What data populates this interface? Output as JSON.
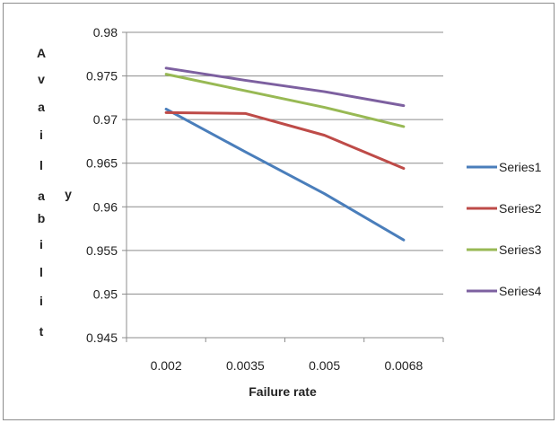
{
  "chart_data": {
    "type": "line",
    "title": "",
    "xlabel": "Failure rate",
    "ylabel_letters": [
      "A",
      "v",
      "a",
      "i",
      "l",
      "a",
      "b",
      "i",
      "l",
      "i",
      "t",
      "y"
    ],
    "categories": [
      "0.002",
      "0.0035",
      "0.005",
      "0.0068"
    ],
    "ylim": [
      0.945,
      0.98
    ],
    "yticks": [
      "0.945",
      "0.95",
      "0.955",
      "0.96",
      "0.965",
      "0.97",
      "0.975",
      "0.98"
    ],
    "grid": "horizontal",
    "legend": "right",
    "series": [
      {
        "name": "Series1",
        "color": "#4a7ebb",
        "values": [
          0.9712,
          0.9663,
          0.9615,
          0.9562
        ]
      },
      {
        "name": "Series2",
        "color": "#be4b48",
        "values": [
          0.9708,
          0.9707,
          0.9682,
          0.9644
        ]
      },
      {
        "name": "Series3",
        "color": "#98b954",
        "values": [
          0.9752,
          0.9733,
          0.9714,
          0.9692
        ]
      },
      {
        "name": "Series4",
        "color": "#7d60a0",
        "values": [
          0.9759,
          0.9745,
          0.9732,
          0.9716
        ]
      }
    ]
  }
}
